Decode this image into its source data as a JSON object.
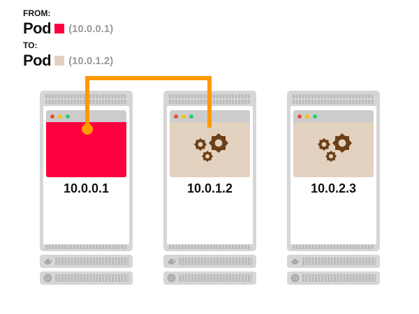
{
  "from": {
    "label": "FROM:",
    "pod": "Pod",
    "ip": "(10.0.0.1)",
    "color": "#ff0040"
  },
  "to": {
    "label": "TO:",
    "pod": "Pod",
    "ip": "(10.0.1.2)",
    "color": "#e3d1bf"
  },
  "connection_color": "#ff9900",
  "servers": [
    {
      "ip": "10.0.0.1",
      "pod_color": "#ff0040",
      "icon": "none"
    },
    {
      "ip": "10.0.1.2",
      "pod_color": "#e3d1bf",
      "icon": "gears-icon"
    },
    {
      "ip": "10.0.2.3",
      "pod_color": "#e3d1bf",
      "icon": "gears-icon"
    }
  ],
  "window_dots": [
    "#e74c3c",
    "#f1c40f",
    "#2ecc71"
  ],
  "unit_icons": [
    "docker-whale-icon",
    "kubernetes-icon"
  ]
}
